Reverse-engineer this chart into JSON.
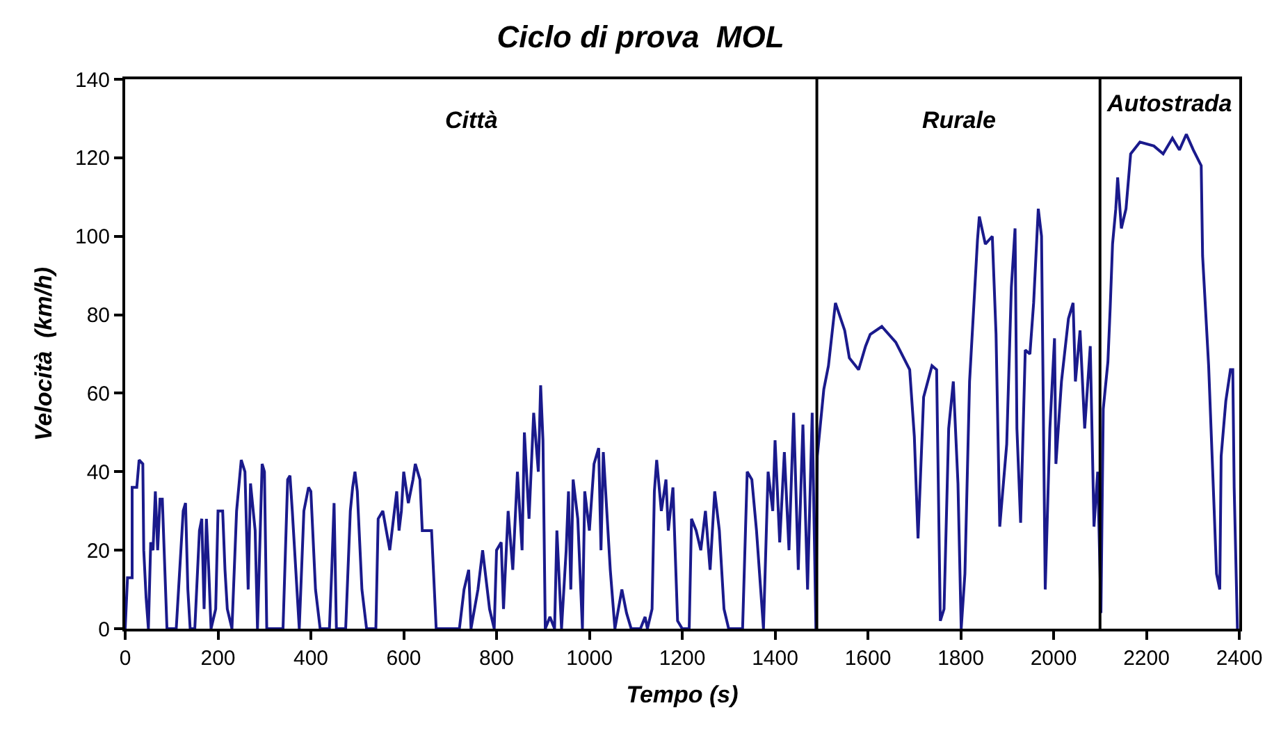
{
  "chart_data": {
    "type": "line",
    "title": "Ciclo di prova  MOL",
    "xlabel": "Tempo (s)",
    "ylabel": "Velocità  (km/h)",
    "xlim": [
      0,
      2400
    ],
    "xticks": [
      0,
      200,
      400,
      600,
      800,
      1000,
      1200,
      1400,
      1600,
      1800,
      2000,
      2200,
      2400
    ],
    "ylim": [
      0,
      140
    ],
    "yticks": [
      0,
      20,
      40,
      60,
      80,
      100,
      120,
      140
    ],
    "grid": false,
    "marker": "none",
    "line_style": "solid",
    "ref_lines": [
      {
        "axis": "x",
        "value": 1490,
        "color": "#000000"
      },
      {
        "axis": "x",
        "value": 2100,
        "color": "#000000"
      }
    ],
    "annotations": [
      "Città",
      "Rurale",
      "Autostrada"
    ],
    "series": [
      {
        "color": "#1a1a8c",
        "x": [
          0,
          5,
          15,
          15,
          25,
          30,
          38,
          40,
          45,
          50,
          55,
          60,
          65,
          70,
          75,
          80,
          90,
          110,
          115,
          125,
          130,
          135,
          140,
          150,
          160,
          165,
          170,
          175,
          180,
          185,
          195,
          200,
          210,
          215,
          220,
          230,
          240,
          250,
          258,
          265,
          270,
          280,
          285,
          295,
          300,
          305,
          340,
          350,
          355,
          360,
          375,
          385,
          395,
          400,
          410,
          420,
          440,
          445,
          450,
          455,
          475,
          485,
          490,
          495,
          500,
          510,
          520,
          540,
          545,
          555,
          570,
          585,
          590,
          595,
          600,
          610,
          620,
          625,
          635,
          640,
          660,
          670,
          720,
          730,
          740,
          745,
          760,
          770,
          785,
          795,
          800,
          810,
          815,
          825,
          835,
          845,
          855,
          860,
          870,
          880,
          890,
          895,
          900,
          905,
          915,
          925,
          930,
          940,
          950,
          955,
          960,
          965,
          975,
          985,
          990,
          1000,
          1010,
          1020,
          1025,
          1030,
          1045,
          1055,
          1070,
          1080,
          1090,
          1110,
          1120,
          1125,
          1135,
          1140,
          1145,
          1155,
          1165,
          1170,
          1180,
          1190,
          1200,
          1215,
          1220,
          1230,
          1240,
          1250,
          1260,
          1270,
          1280,
          1290,
          1300,
          1330,
          1340,
          1350,
          1360,
          1375,
          1385,
          1395,
          1400,
          1410,
          1420,
          1430,
          1440,
          1450,
          1460,
          1470,
          1480,
          1488,
          1491,
          1505,
          1515,
          1530,
          1550,
          1560,
          1580,
          1595,
          1605,
          1630,
          1660,
          1690,
          1700,
          1708,
          1720,
          1738,
          1748,
          1756,
          1764,
          1774,
          1784,
          1794,
          1801,
          1809,
          1819,
          1828,
          1836,
          1840,
          1853,
          1868,
          1876,
          1884,
          1899,
          1909,
          1917,
          1921,
          1929,
          1939,
          1949,
          1957,
          1967,
          1974,
          1982,
          1992,
          2002,
          2005,
          2017,
          2032,
          2042,
          2047,
          2057,
          2067,
          2079,
          2087,
          2095,
          2102,
          2107,
          2117,
          2122,
          2127,
          2134,
          2138,
          2146,
          2156,
          2166,
          2186,
          2216,
          2236,
          2256,
          2271,
          2286,
          2301,
          2318,
          2321,
          2334,
          2346,
          2351,
          2358,
          2361,
          2371,
          2381,
          2386,
          2389,
          2396
        ],
        "values": [
          0,
          13,
          13,
          36,
          36,
          43,
          42,
          20,
          8,
          0,
          22,
          20,
          35,
          20,
          33,
          33,
          0,
          0,
          10,
          30,
          32,
          10,
          0,
          0,
          25,
          28,
          5,
          28,
          15,
          0,
          5,
          30,
          30,
          15,
          5,
          0,
          30,
          43,
          40,
          10,
          37,
          25,
          0,
          42,
          40,
          0,
          0,
          38,
          39,
          30,
          0,
          30,
          36,
          35,
          10,
          0,
          0,
          15,
          32,
          0,
          0,
          30,
          36,
          40,
          35,
          10,
          0,
          0,
          28,
          30,
          20,
          35,
          25,
          30,
          40,
          32,
          38,
          42,
          38,
          25,
          25,
          0,
          0,
          10,
          15,
          0,
          10,
          20,
          5,
          0,
          20,
          22,
          5,
          30,
          15,
          40,
          20,
          50,
          28,
          55,
          40,
          62,
          48,
          0,
          3,
          0,
          25,
          0,
          20,
          35,
          10,
          38,
          28,
          0,
          35,
          25,
          42,
          46,
          20,
          45,
          15,
          0,
          10,
          4,
          0,
          0,
          3,
          0,
          5,
          35,
          43,
          30,
          38,
          25,
          36,
          2,
          0,
          0,
          28,
          25,
          20,
          30,
          15,
          35,
          25,
          5,
          0,
          0,
          40,
          38,
          25,
          0,
          40,
          30,
          48,
          22,
          45,
          20,
          55,
          15,
          52,
          10,
          55,
          0,
          44,
          61,
          67,
          83,
          76,
          69,
          66,
          72,
          75,
          77,
          73,
          66,
          49,
          23,
          59,
          67,
          66,
          2,
          5,
          51,
          63,
          37,
          0,
          14,
          63,
          82,
          99,
          105,
          98,
          100,
          75,
          26,
          47,
          87,
          102,
          51,
          27,
          71,
          70,
          83,
          107,
          100,
          10,
          51,
          74,
          42,
          63,
          79,
          83,
          63,
          76,
          51,
          72,
          26,
          40,
          4,
          56,
          68,
          82,
          98,
          107,
          115,
          102,
          107,
          121,
          124,
          123,
          121,
          125,
          122,
          126,
          122,
          118,
          95,
          67,
          30,
          14,
          10,
          44,
          58,
          66,
          66,
          36,
          0
        ]
      }
    ]
  }
}
